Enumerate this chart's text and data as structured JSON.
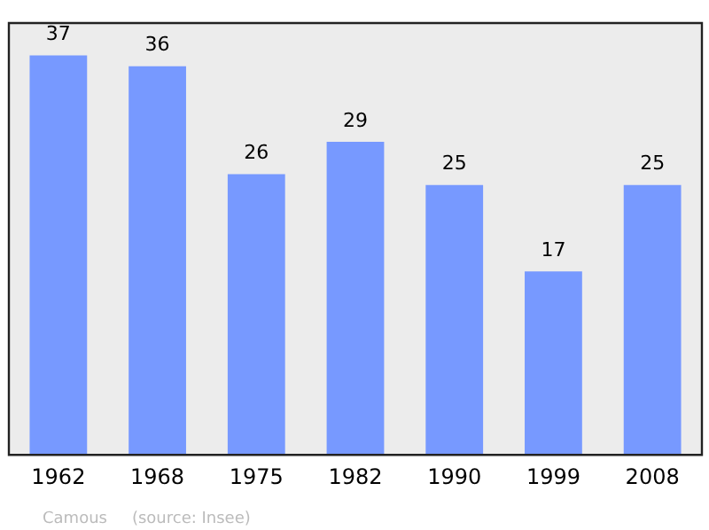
{
  "chart_data": {
    "type": "bar",
    "categories": [
      "1962",
      "1968",
      "1975",
      "1982",
      "1990",
      "1999",
      "2008"
    ],
    "values": [
      37,
      36,
      26,
      29,
      25,
      17,
      25
    ],
    "color": "#7799ff",
    "data_labels": true,
    "grid": false,
    "legend": false,
    "tick_labels": "x",
    "annotations": [
      "Camous",
      "(source: Insee)"
    ]
  }
}
